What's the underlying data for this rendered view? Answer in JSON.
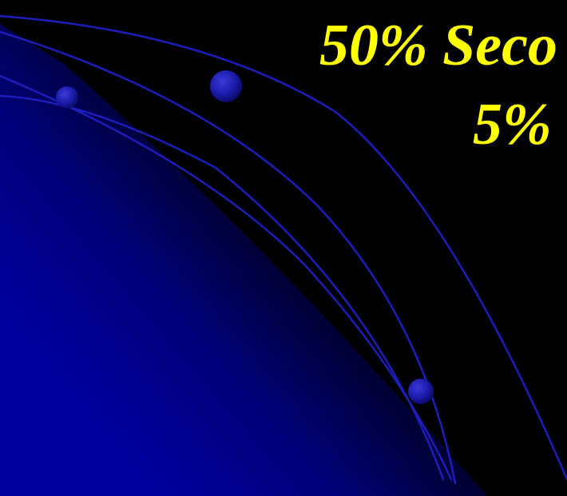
{
  "slide": {
    "title_line_1": "50% Seco",
    "title_line_2": "5%"
  },
  "colors": {
    "background": "#000000",
    "gradient_blue": "#0000a0",
    "arc_stroke": "#1d1dbc",
    "orb_blue": "#1a1aa8",
    "title_text": "#ffff00"
  },
  "icons": [
    "arc-line",
    "orb-decoration"
  ]
}
